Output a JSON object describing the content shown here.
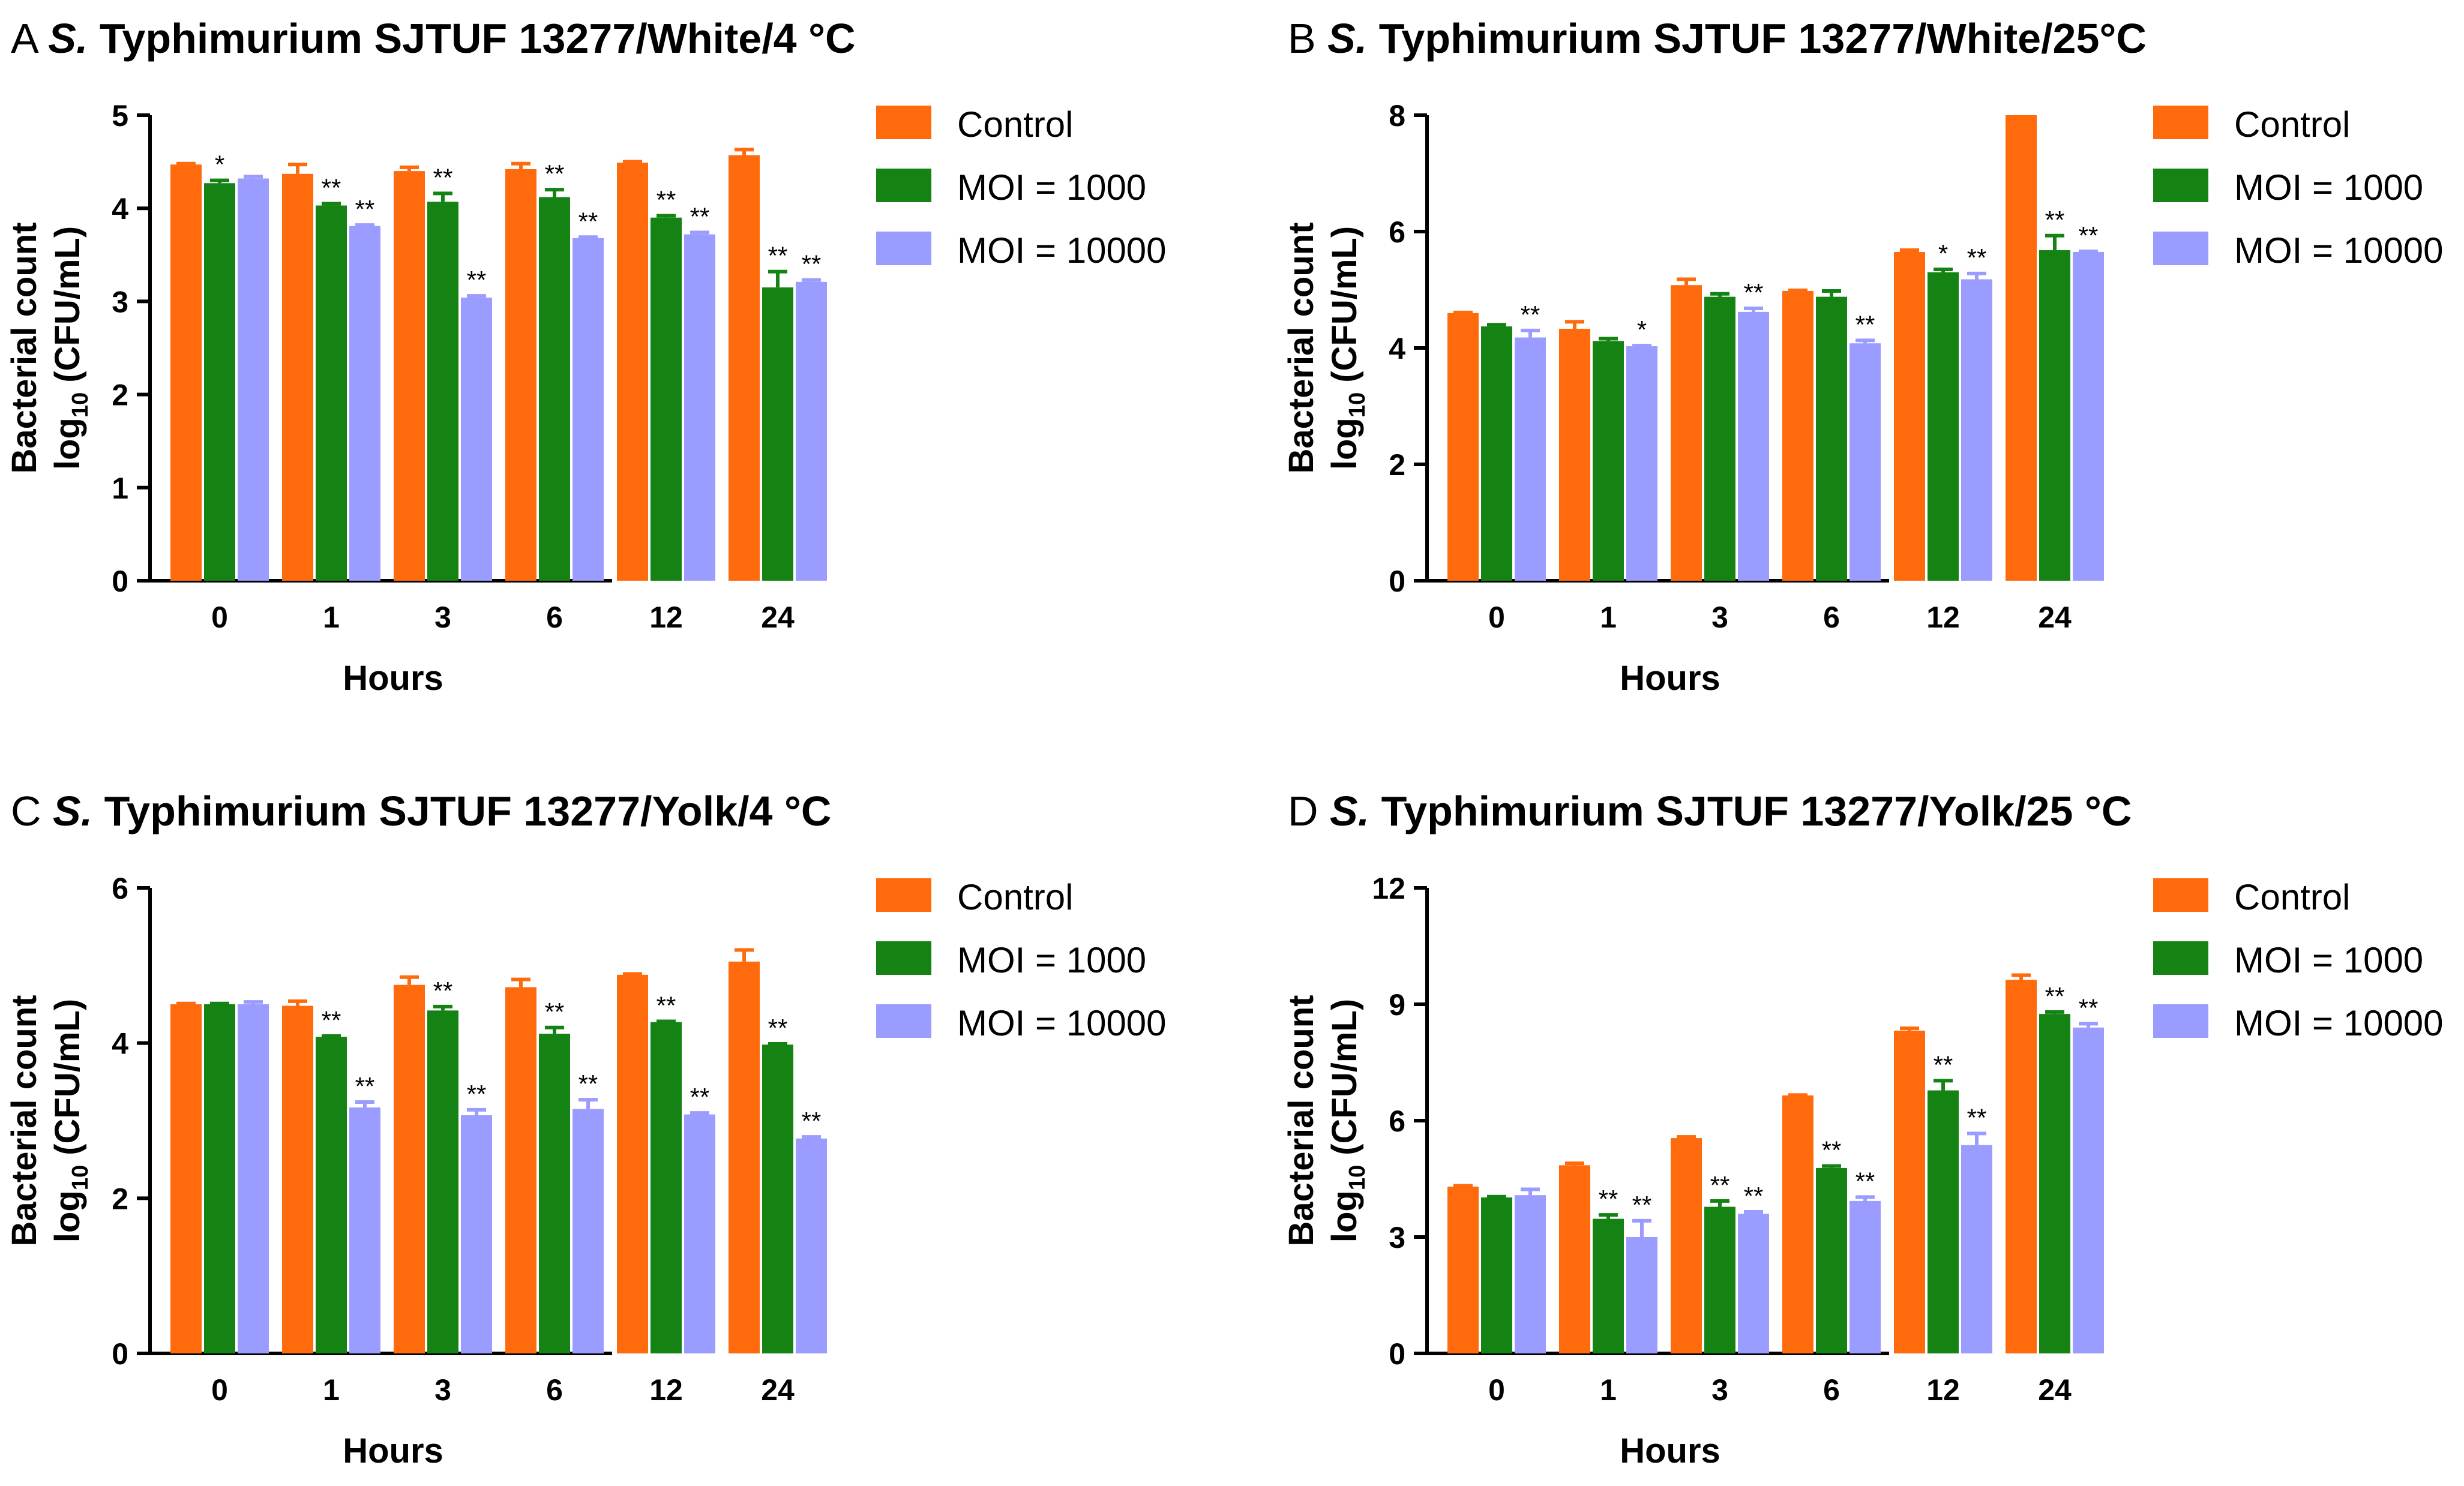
{
  "figure": {
    "colors": {
      "control": "#ff6a0d",
      "moi1000": "#158214",
      "moi10000": "#9a9cff",
      "axis": "#000000"
    },
    "legend_labels": [
      "Control",
      "MOI = 1000",
      "MOI = 10000"
    ]
  },
  "chart_data": [
    {
      "type": "bar",
      "panel_letter": "A",
      "title_italic": "S.",
      "title_rest": " Typhimurium SJTUF 13277/White/4 °C",
      "xlabel": "Hours",
      "ylabel_line1": "Bacterial count",
      "ylabel_line2_pre": "log",
      "ylabel_line2_sub": "10",
      "ylabel_line2_post": " (CFU/mL)",
      "categories": [
        "0",
        "1",
        "3",
        "6",
        "12",
        "24"
      ],
      "ylim": [
        0,
        5
      ],
      "yticks": [
        "0",
        "1",
        "2",
        "3",
        "4",
        "5"
      ],
      "series": [
        {
          "name": "Control",
          "values": [
            4.47,
            4.37,
            4.4,
            4.42,
            4.49,
            4.57
          ],
          "errors": [
            0.01,
            0.1,
            0.04,
            0.06,
            0.01,
            0.06
          ],
          "stars": [
            "",
            "",
            "",
            "",
            "",
            ""
          ]
        },
        {
          "name": "MOI = 1000",
          "values": [
            4.27,
            4.03,
            4.07,
            4.12,
            3.9,
            3.15
          ],
          "errors": [
            0.03,
            0.02,
            0.09,
            0.08,
            0.02,
            0.17
          ],
          "stars": [
            "*",
            "**",
            "**",
            "**",
            "**",
            "**"
          ]
        },
        {
          "name": "MOI = 10000",
          "values": [
            4.32,
            3.81,
            3.04,
            3.68,
            3.72,
            3.21
          ],
          "errors": [
            0.02,
            0.01,
            0.02,
            0.01,
            0.02,
            0.02
          ],
          "stars": [
            "",
            "**",
            "**",
            "**",
            "**",
            "**"
          ]
        }
      ]
    },
    {
      "type": "bar",
      "panel_letter": "B",
      "title_italic": "S.",
      "title_rest": " Typhimurium SJTUF 13277/White/25°C",
      "xlabel": "Hours",
      "ylabel_line1": "Bacterial count",
      "ylabel_line2_pre": "log",
      "ylabel_line2_sub": "10",
      "ylabel_line2_post": " (CFU/mL)",
      "categories": [
        "0",
        "1",
        "3",
        "6",
        "12",
        "24"
      ],
      "ylim": [
        0,
        8
      ],
      "yticks": [
        "0",
        "2",
        "4",
        "6",
        "8"
      ],
      "series": [
        {
          "name": "Control",
          "values": [
            4.6,
            4.33,
            5.08,
            4.98,
            5.65,
            8.0
          ],
          "errors": [
            0.01,
            0.12,
            0.1,
            0.01,
            0.03,
            0.0
          ],
          "stars": [
            "",
            "",
            "",
            "",
            "",
            ""
          ]
        },
        {
          "name": "MOI = 1000",
          "values": [
            4.37,
            4.12,
            4.88,
            4.88,
            5.3,
            5.68
          ],
          "errors": [
            0.03,
            0.04,
            0.05,
            0.1,
            0.05,
            0.25
          ],
          "stars": [
            "",
            "",
            "",
            "",
            "*",
            "**"
          ]
        },
        {
          "name": "MOI = 10000",
          "values": [
            4.18,
            4.03,
            4.62,
            4.08,
            5.18,
            5.65
          ],
          "errors": [
            0.12,
            0.01,
            0.06,
            0.05,
            0.1,
            0.01
          ],
          "stars": [
            "**",
            "*",
            "**",
            "**",
            "**",
            "**"
          ]
        }
      ]
    },
    {
      "type": "bar",
      "panel_letter": "C",
      "title_italic": "S.",
      "title_rest": " Typhimurium SJTUF 13277/Yolk/4 °C",
      "xlabel": "Hours",
      "ylabel_line1": "Bacterial count",
      "ylabel_line2_pre": "log",
      "ylabel_line2_sub": "10",
      "ylabel_line2_post": " (CFU/mL)",
      "categories": [
        "0",
        "1",
        "3",
        "6",
        "12",
        "24"
      ],
      "ylim": [
        0,
        6
      ],
      "yticks": [
        "0",
        "2",
        "4",
        "6"
      ],
      "series": [
        {
          "name": "Control",
          "values": [
            4.5,
            4.48,
            4.75,
            4.72,
            4.88,
            5.05
          ],
          "errors": [
            0.01,
            0.06,
            0.1,
            0.1,
            0.01,
            0.15
          ],
          "stars": [
            "",
            "",
            "",
            "",
            "",
            ""
          ]
        },
        {
          "name": "MOI = 1000",
          "values": [
            4.5,
            4.08,
            4.42,
            4.12,
            4.27,
            3.98
          ],
          "errors": [
            0.01,
            0.01,
            0.05,
            0.08,
            0.01,
            0.01
          ],
          "stars": [
            "",
            "**",
            "**",
            "**",
            "**",
            "**"
          ]
        },
        {
          "name": "MOI = 10000",
          "values": [
            4.5,
            3.17,
            3.07,
            3.15,
            3.08,
            2.77
          ],
          "errors": [
            0.03,
            0.07,
            0.07,
            0.12,
            0.02,
            0.02
          ],
          "stars": [
            "",
            "**",
            "**",
            "**",
            "**",
            "**"
          ]
        }
      ]
    },
    {
      "type": "bar",
      "panel_letter": "D",
      "title_italic": "S.",
      "title_rest": " Typhimurium SJTUF 13277/Yolk/25 °C",
      "xlabel": "Hours",
      "ylabel_line1": "Bacterial count",
      "ylabel_line2_pre": "log",
      "ylabel_line2_sub": "10",
      "ylabel_line2_post": " (CFU/mL)",
      "categories": [
        "0",
        "1",
        "3",
        "6",
        "12",
        "24"
      ],
      "ylim": [
        0,
        12
      ],
      "yticks": [
        "0",
        "3",
        "6",
        "9",
        "12"
      ],
      "series": [
        {
          "name": "Control",
          "values": [
            4.3,
            4.85,
            5.55,
            6.65,
            8.32,
            9.63
          ],
          "errors": [
            0.02,
            0.05,
            0.03,
            0.01,
            0.06,
            0.12
          ],
          "stars": [
            "",
            "",
            "",
            "",
            "",
            ""
          ]
        },
        {
          "name": "MOI = 1000",
          "values": [
            4.02,
            3.47,
            3.78,
            4.78,
            6.78,
            8.75
          ],
          "errors": [
            0.02,
            0.1,
            0.15,
            0.05,
            0.25,
            0.05
          ],
          "stars": [
            "",
            "**",
            "**",
            "**",
            "**",
            "**"
          ]
        },
        {
          "name": "MOI = 10000",
          "values": [
            4.08,
            3.0,
            3.6,
            3.93,
            5.37,
            8.4
          ],
          "errors": [
            0.15,
            0.42,
            0.05,
            0.1,
            0.3,
            0.1
          ],
          "stars": [
            "",
            "**",
            "**",
            "**",
            "**",
            "**"
          ]
        }
      ]
    }
  ]
}
